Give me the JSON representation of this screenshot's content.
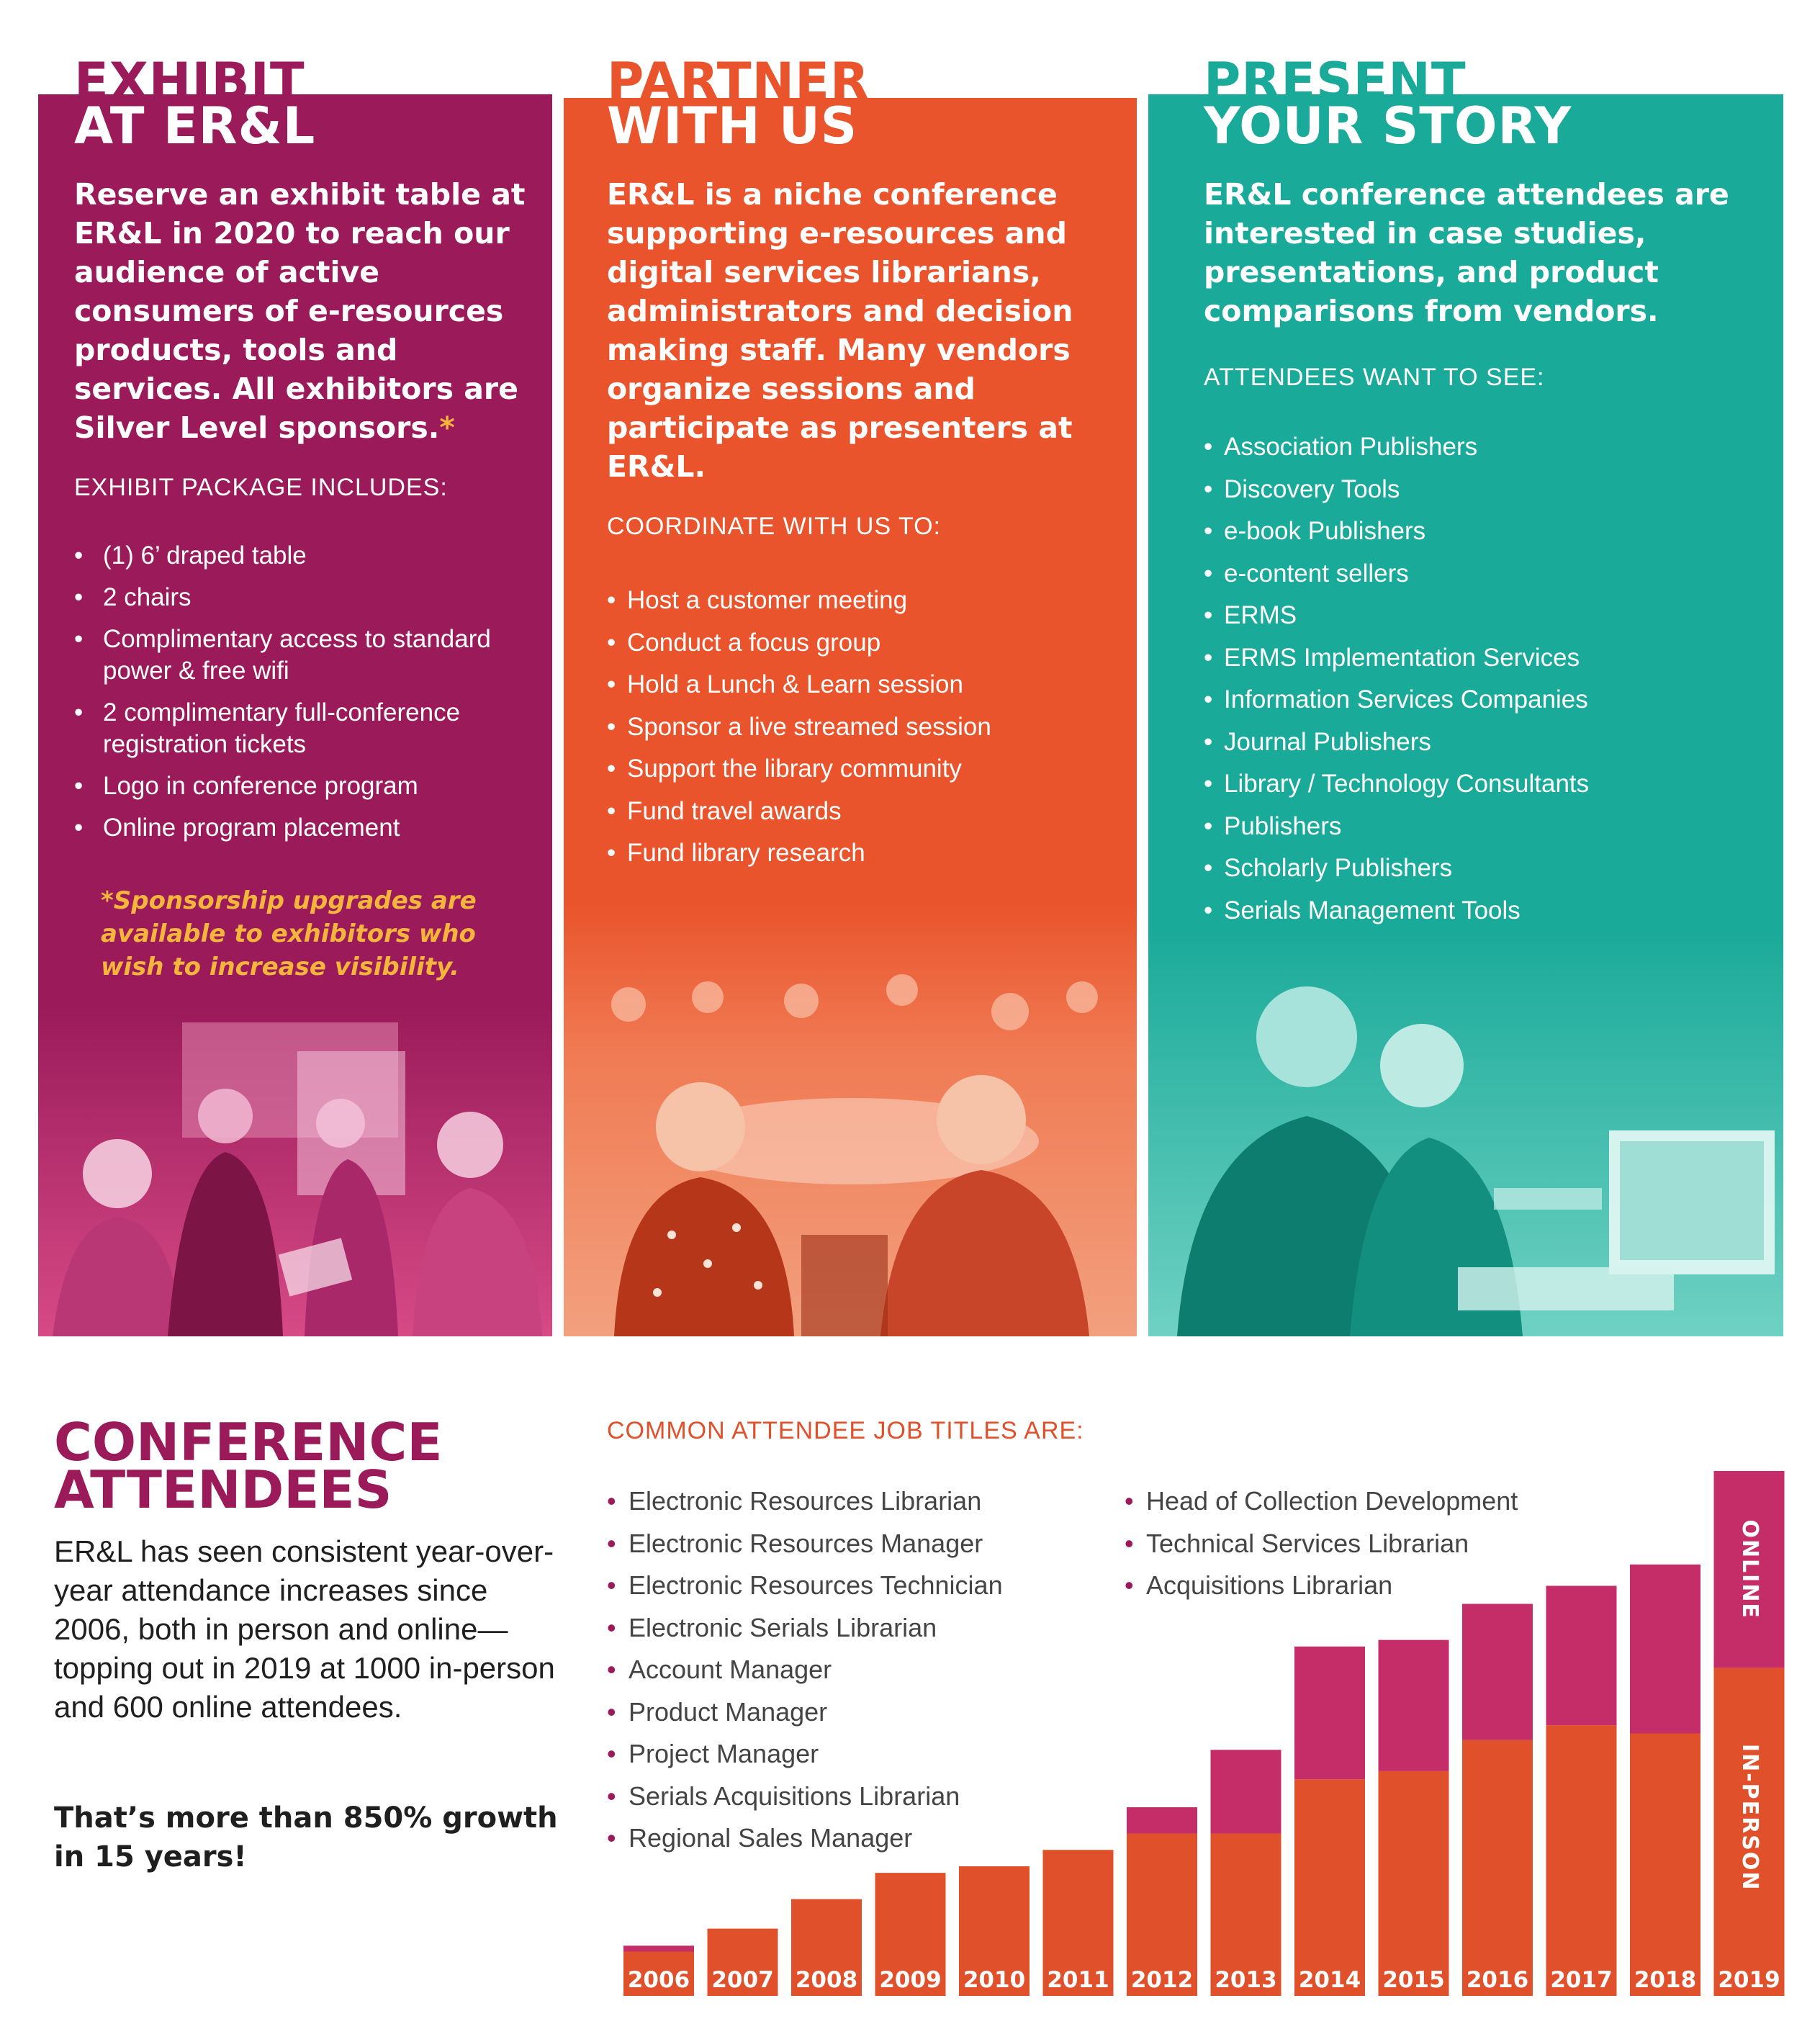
{
  "colors": {
    "plum": "#9b1b5a",
    "orange": "#e9542c",
    "teal": "#1aaa99",
    "yellow": "#f3b53c",
    "in_person": "#e0502a",
    "online": "#c42d68"
  },
  "exhibit": {
    "title_line1": "EXHIBIT",
    "title_line2": "AT ER&L",
    "intro": "Reserve an exhibit table at ER&L in 2020 to reach our audience of active consumers of e-resources products, tools and services. All exhibitors are Silver Level sponsors.",
    "intro_marker": "*",
    "package_heading": "EXHIBIT PACKAGE INCLUDES:",
    "package_items": [
      "(1) 6’ draped table",
      "2 chairs",
      "Complimentary access to standard power & free wifi",
      "2 complimentary full-conference registration tickets",
      "Logo in conference program",
      "Online program placement"
    ],
    "footnote": "*Sponsorship upgrades are available to exhibitors who wish to increase visibility."
  },
  "partner": {
    "title_line1": "PARTNER",
    "title_line2": "WITH US",
    "intro": "ER&L is a niche conference supporting e-resources and digital services librarians, administrators and decision making staff.  Many vendors organize sessions and participate as presenters at ER&L.",
    "coordinate_heading": "COORDINATE WITH US TO:",
    "coordinate_items": [
      "Host a customer meeting",
      "Conduct a focus group",
      "Hold a Lunch & Learn session",
      "Sponsor a live streamed session",
      "Support the library community",
      "Fund travel awards",
      "Fund library research"
    ]
  },
  "present": {
    "title_line1": "PRESENT",
    "title_line2": "YOUR STORY",
    "intro": "ER&L conference attendees are interested in case studies, presentations, and product comparisons from vendors.",
    "want_heading": "ATTENDEES WANT TO SEE:",
    "want_items": [
      "Association Publishers",
      "Discovery Tools",
      "e-book Publishers",
      "e-content sellers",
      "ERMS",
      "ERMS Implementation Services",
      "Information Services Companies",
      "Journal Publishers",
      "Library / Technology Consultants",
      "Publishers",
      "Scholarly Publishers",
      "Serials Management Tools"
    ]
  },
  "attendees": {
    "title_line1": "CONFERENCE",
    "title_line2": "ATTENDEES",
    "body": "ER&L has seen consistent year-over-year attendance increases since 2006, both in person and online— topping out in 2019 at 1000 in-person and 600 online attendees.",
    "growth": "That’s more than 850% growth in 15 years!",
    "jobs_heading": "COMMON ATTENDEE JOB TITLES ARE:",
    "jobs_col1": [
      "Electronic Resources Librarian",
      "Electronic Resources Manager",
      "Electronic Resources Technician",
      "Electronic Serials Librarian",
      "Account Manager",
      "Product Manager",
      "Project Manager",
      "Serials Acquisitions Librarian",
      "Regional Sales Manager"
    ],
    "jobs_col2": [
      "Head of Collection Development",
      "Technical Services Librarian",
      "Acquisitions Librarian"
    ]
  },
  "chart_data": {
    "type": "bar",
    "stacked": true,
    "categories": [
      "2006",
      "2007",
      "2008",
      "2009",
      "2010",
      "2011",
      "2012",
      "2013",
      "2014",
      "2015",
      "2016",
      "2017",
      "2018",
      "2019"
    ],
    "series": [
      {
        "name": "IN-PERSON",
        "values": [
          135,
          205,
          295,
          375,
          395,
          445,
          495,
          495,
          660,
          685,
          780,
          825,
          800,
          1000
        ]
      },
      {
        "name": "ONLINE",
        "values": [
          18,
          0,
          0,
          0,
          0,
          0,
          80,
          255,
          405,
          400,
          415,
          425,
          515,
          600
        ]
      }
    ],
    "ylim": [
      0,
      1600
    ],
    "grid": false,
    "legend": "labels inside top bar"
  }
}
